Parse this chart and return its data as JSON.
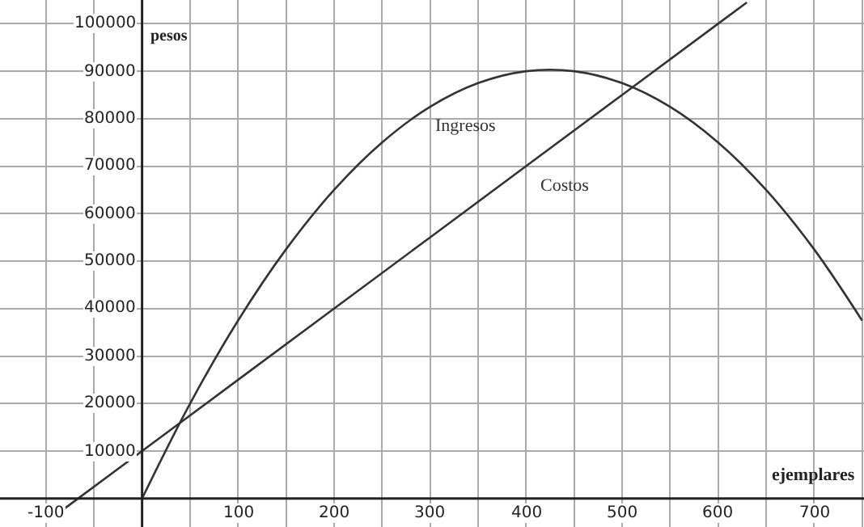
{
  "chart_data": {
    "type": "line",
    "xlabel": "ejemplares",
    "ylabel": "pesos",
    "xlim": [
      -148,
      752
    ],
    "ylim": [
      -6000,
      105000
    ],
    "xticks": [
      -100,
      {
        "value": -50,
        "label": null
      },
      {
        "value": 0,
        "label": null
      },
      {
        "value": 50,
        "label": null
      },
      100,
      {
        "value": 150,
        "label": null
      },
      200,
      {
        "value": 250,
        "label": null
      },
      300,
      {
        "value": 350,
        "label": null
      },
      400,
      {
        "value": 450,
        "label": null
      },
      500,
      {
        "value": 550,
        "label": null
      },
      600,
      {
        "value": 650,
        "label": null
      },
      700,
      {
        "value": 750,
        "label": null
      }
    ],
    "yticks": [
      {
        "value": 0,
        "label": null
      },
      10000,
      20000,
      30000,
      40000,
      50000,
      60000,
      70000,
      80000,
      90000,
      100000
    ],
    "grid": true,
    "legend": false,
    "marker": "none",
    "line_style": "solid",
    "series": [
      {
        "name": "Ingresos",
        "color": "#333333",
        "x": [
          0,
          50,
          100,
          150,
          200,
          250,
          300,
          350,
          400,
          450,
          500,
          550,
          600,
          650,
          700,
          750
        ],
        "values": [
          0,
          20000,
          37500,
          52500,
          65000,
          75000,
          82500,
          87500,
          90000,
          90000,
          87500,
          82500,
          75000,
          65000,
          52500,
          37500
        ]
      },
      {
        "name": "Costos",
        "color": "#333333",
        "x": [
          -100,
          0,
          100,
          200,
          300,
          400,
          500,
          600,
          630
        ],
        "values": [
          -5000,
          10000,
          25000,
          40000,
          55000,
          70000,
          85000,
          100000,
          104500
        ]
      }
    ]
  }
}
